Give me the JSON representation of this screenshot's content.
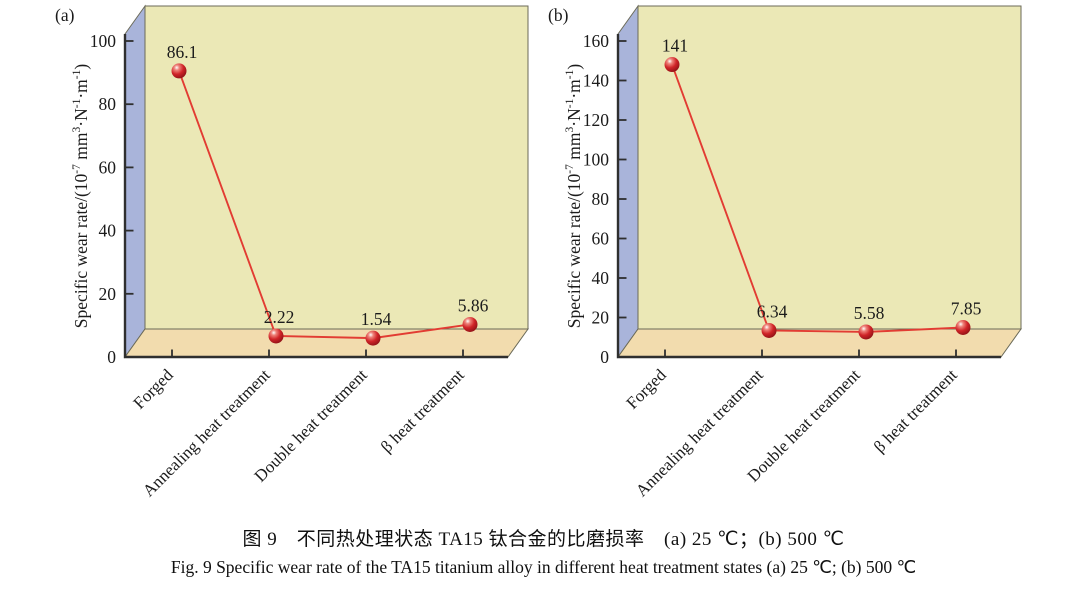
{
  "figure": {
    "caption_zh": "图 9　不同热处理状态 TA15 钛合金的比磨损率　(a) 25 ℃；(b) 500 ℃",
    "caption_en": "Fig. 9   Specific wear rate of the TA15 titanium alloy in different heat treatment states   (a) 25 ℃; (b) 500 ℃"
  },
  "colors": {
    "wall_left": "#a9b4da",
    "wall_back": "#ebe8b6",
    "floor": "#f2dcae",
    "edge": "#6b6a58",
    "axis": "#2f2f2f",
    "line": "#e23c33",
    "marker_main": "#d02428",
    "marker_dark": "#7e0d12",
    "marker_highlight": "#ffffff",
    "text": "#1b1b1b"
  },
  "chart_data": [
    {
      "type": "line",
      "panel": "(a)",
      "condition": "25 ℃",
      "categories": [
        "Forged",
        "Annealing heat treatment",
        "Double heat treatment",
        "β heat treatment"
      ],
      "values": [
        86.1,
        2.22,
        1.54,
        5.86
      ],
      "point_labels": [
        "86.1",
        "2.22",
        "1.54",
        "5.86"
      ],
      "ylabel": "Specific wear rate/(10⁻⁷ mm³·N⁻¹·m⁻¹)",
      "ylabel_parts": [
        [
          "Specific wear rate/(10",
          false
        ],
        [
          "-7",
          true
        ],
        [
          " mm",
          false
        ],
        [
          "3",
          true
        ],
        [
          "·N",
          false
        ],
        [
          "-1",
          true
        ],
        [
          "·m",
          false
        ],
        [
          "-1",
          true
        ],
        [
          ")",
          false
        ]
      ],
      "xlabel": "",
      "ylim": [
        0,
        100
      ],
      "yticks": [
        0,
        20,
        40,
        60,
        80,
        100
      ],
      "grid": false,
      "legend": "none",
      "marker_style": "sphere"
    },
    {
      "type": "line",
      "panel": "(b)",
      "condition": "500 ℃",
      "categories": [
        "Forged",
        "Annealing heat treatment",
        "Double heat treatment",
        "β heat treatment"
      ],
      "values": [
        141,
        6.34,
        5.58,
        7.85
      ],
      "point_labels": [
        "141",
        "6.34",
        "5.58",
        "7.85"
      ],
      "ylabel": "Specific wear rate/(10⁻⁷ mm³·N⁻¹·m⁻¹)",
      "ylabel_parts": [
        [
          "Specific wear rate/(10",
          false
        ],
        [
          "-7",
          true
        ],
        [
          " mm",
          false
        ],
        [
          "3",
          true
        ],
        [
          "·N",
          false
        ],
        [
          "-1",
          true
        ],
        [
          "·m",
          false
        ],
        [
          "-1",
          true
        ],
        [
          ")",
          false
        ]
      ],
      "xlabel": "",
      "ylim": [
        0,
        160
      ],
      "yticks": [
        0,
        20,
        40,
        60,
        80,
        100,
        120,
        140,
        160
      ],
      "grid": false,
      "legend": "none",
      "marker_style": "sphere"
    }
  ]
}
